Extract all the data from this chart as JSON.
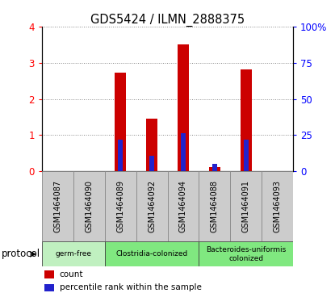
{
  "title": "GDS5424 / ILMN_2888375",
  "samples": [
    "GSM1464087",
    "GSM1464090",
    "GSM1464089",
    "GSM1464092",
    "GSM1464094",
    "GSM1464088",
    "GSM1464091",
    "GSM1464093"
  ],
  "counts": [
    0,
    0,
    2.72,
    1.45,
    3.5,
    0.12,
    2.82,
    0
  ],
  "percentile_ranks_scaled": [
    0,
    0,
    0.88,
    0.42,
    1.06,
    0.2,
    0.88,
    0
  ],
  "ylim_left": [
    0,
    4
  ],
  "ylim_right": [
    0,
    100
  ],
  "yticks_left": [
    0,
    1,
    2,
    3,
    4
  ],
  "yticks_right": [
    0,
    25,
    50,
    75,
    100
  ],
  "ytick_labels_right": [
    "0",
    "25",
    "50",
    "75",
    "100%"
  ],
  "proto_groups": [
    {
      "label": "germ-free",
      "start": 0,
      "end": 1,
      "color": "#c0f0c0"
    },
    {
      "label": "Clostridia-colonized",
      "start": 2,
      "end": 4,
      "color": "#80e880"
    },
    {
      "label": "Bacteroides-uniformis\ncolonized",
      "start": 5,
      "end": 7,
      "color": "#80e880"
    }
  ],
  "bar_color": "#cc0000",
  "percentile_color": "#2222cc",
  "bar_width": 0.35,
  "background_color": "#ffffff",
  "grid_color": "#888888",
  "legend_items": [
    {
      "label": "count",
      "color": "#cc0000"
    },
    {
      "label": "percentile rank within the sample",
      "color": "#2222cc"
    }
  ],
  "protocol_label": "protocol",
  "sample_box_color": "#cccccc",
  "sample_box_edge": "#888888"
}
